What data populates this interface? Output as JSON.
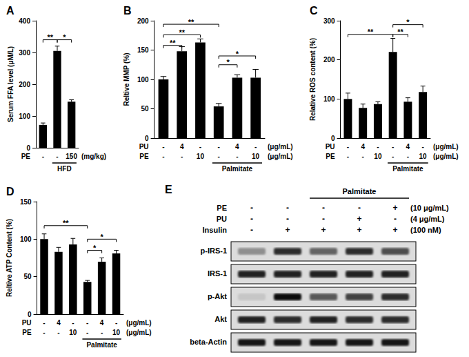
{
  "chart_data": [
    {
      "type": "bar",
      "title": "A",
      "y_label": "Serum FFA level (μM/L)",
      "values": [
        72,
        305,
        145
      ],
      "errors": [
        6,
        15,
        6
      ],
      "color": "#000000",
      "ylim": [
        0,
        400
      ],
      "yticks": [
        0,
        100,
        200,
        300,
        400
      ],
      "grid": false,
      "treatments": [
        {
          "name": "PE",
          "levels": [
            "-",
            "-",
            "150"
          ]
        }
      ],
      "treatment_unit": "(mg/kg)",
      "group_label": "HFD",
      "group_span": [
        1,
        2
      ],
      "annotations": [
        {
          "from": 0,
          "to": 1,
          "y": 340,
          "label": "**"
        },
        {
          "from": 1,
          "to": 2,
          "y": 340,
          "label": "*"
        }
      ]
    },
    {
      "type": "bar",
      "title": "B",
      "y_label": "Reltive MMP (%)",
      "values": [
        100,
        148,
        163,
        54,
        103,
        103
      ],
      "errors": [
        5,
        8,
        6,
        5,
        5,
        14
      ],
      "color": "#000000",
      "ylim": [
        0,
        200
      ],
      "yticks": [
        0,
        50,
        100,
        150,
        200
      ],
      "grid": false,
      "treatments": [
        {
          "name": "PU",
          "levels": [
            "-",
            "4",
            "-",
            "-",
            "4",
            "-"
          ]
        },
        {
          "name": "PE",
          "levels": [
            "-",
            "-",
            "10",
            "-",
            "-",
            "10"
          ]
        }
      ],
      "treatment_unit": "(μg/mL)",
      "group_label": "Palmitate",
      "group_span": [
        3,
        5
      ],
      "annotations": [
        {
          "from": 0,
          "to": 1,
          "y": 158,
          "label": "**"
        },
        {
          "from": 0,
          "to": 2,
          "y": 176,
          "label": "**"
        },
        {
          "from": 0,
          "to": 3,
          "y": 194,
          "label": "**"
        },
        {
          "from": 3,
          "to": 4,
          "y": 125,
          "label": "*"
        },
        {
          "from": 3,
          "to": 5,
          "y": 140,
          "label": "*"
        }
      ]
    },
    {
      "type": "bar",
      "title": "C",
      "y_label": "Relative ROS content (%)",
      "values": [
        100,
        77,
        87,
        220,
        93,
        118
      ],
      "errors": [
        15,
        10,
        6,
        35,
        10,
        15
      ],
      "color": "#000000",
      "ylim": [
        0,
        300
      ],
      "yticks": [
        0,
        100,
        200,
        300
      ],
      "grid": false,
      "treatments": [
        {
          "name": "PU",
          "levels": [
            "-",
            "4",
            "-",
            "-",
            "4",
            "-"
          ]
        },
        {
          "name": "PE",
          "levels": [
            "-",
            "-",
            "10",
            "-",
            "-",
            "10"
          ]
        }
      ],
      "treatment_unit": "(μg/mL)",
      "group_label": "Palmitate",
      "group_span": [
        3,
        5
      ],
      "annotations": [
        {
          "from": 0,
          "to": 3,
          "y": 265,
          "label": "**"
        },
        {
          "from": 3,
          "to": 4,
          "y": 265,
          "label": "**"
        },
        {
          "from": 3,
          "to": 5,
          "y": 290,
          "label": "*"
        }
      ]
    },
    {
      "type": "bar",
      "title": "D",
      "y_label": "Reltive ATP Content (%)",
      "values": [
        100,
        83,
        93,
        43,
        70,
        81
      ],
      "errors": [
        7,
        6,
        8,
        2,
        5,
        4
      ],
      "color": "#000000",
      "ylim": [
        0,
        150
      ],
      "yticks": [
        0,
        50,
        100,
        150
      ],
      "grid": false,
      "treatments": [
        {
          "name": "PU",
          "levels": [
            "-",
            "4",
            "-",
            "-",
            "4",
            "-"
          ]
        },
        {
          "name": "PE",
          "levels": [
            "-",
            "-",
            "10",
            "-",
            "-",
            "10"
          ]
        }
      ],
      "treatment_unit": "(μg/mL)",
      "group_label": "Palmitate",
      "group_span": [
        3,
        5
      ],
      "annotations": [
        {
          "from": 0,
          "to": 3,
          "y": 118,
          "label": "**"
        },
        {
          "from": 3,
          "to": 4,
          "y": 85,
          "label": "*"
        },
        {
          "from": 3,
          "to": 5,
          "y": 100,
          "label": "*"
        }
      ]
    }
  ],
  "blot": {
    "title": "E",
    "group_label": "Palmitate",
    "group_span": [
      2,
      4
    ],
    "treatments": [
      {
        "name": "PE",
        "levels": [
          "-",
          "-",
          "-",
          "-",
          "+"
        ],
        "unit": "(10 μg/mL)"
      },
      {
        "name": "PU",
        "levels": [
          "-",
          "-",
          "-",
          "+",
          "-"
        ],
        "unit": "(4 μg/mL)"
      },
      {
        "name": "Insulin",
        "levels": [
          "-",
          "+",
          "+",
          "+",
          "+"
        ],
        "unit": "(100 nM)"
      }
    ],
    "bands": [
      {
        "name": "p-IRS-1",
        "band_intensity": [
          0.35,
          0.8,
          0.55,
          0.8,
          0.65
        ]
      },
      {
        "name": "IRS-1",
        "band_intensity": [
          0.85,
          0.85,
          0.85,
          0.85,
          0.85
        ]
      },
      {
        "name": "p-Akt",
        "band_intensity": [
          0.1,
          0.95,
          0.6,
          0.7,
          0.8
        ]
      },
      {
        "name": "Akt",
        "band_intensity": [
          0.85,
          0.8,
          0.85,
          0.8,
          0.8
        ]
      },
      {
        "name": "beta-Actin",
        "band_intensity": [
          0.9,
          0.9,
          0.9,
          0.9,
          0.9
        ]
      }
    ]
  }
}
